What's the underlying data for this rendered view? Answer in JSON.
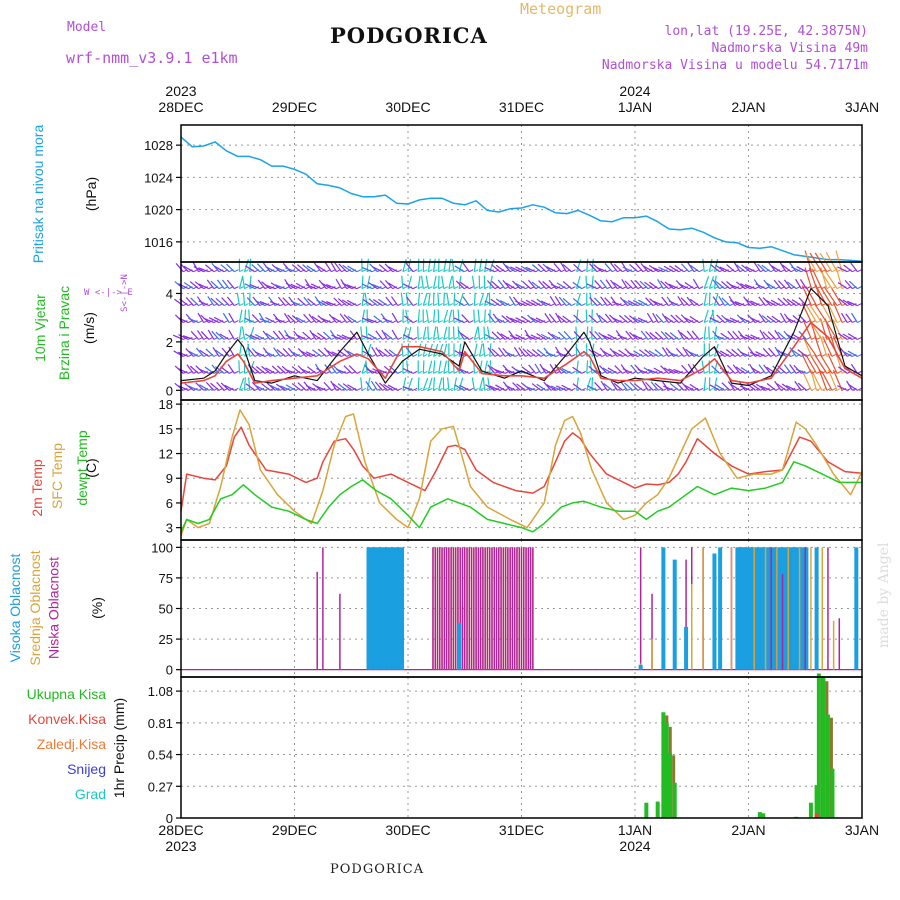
{
  "header": {
    "model_label": "Model",
    "model_name": "wrf-nmm_v3.9.1 e1km",
    "title": "PODGORICA",
    "meteogram": "Meteogram",
    "lonlat": "lon,lat (19.25E, 42.3875N)",
    "elevation": "Nadmorska Visina 49m",
    "model_elevation": "Nadmorska Visina u modelu 54.7171m",
    "footer": "PODGORICA",
    "watermark": "made by Angel"
  },
  "colors": {
    "pressure": "#1aa3e8",
    "temp2m": "#e8463c",
    "sfc": "#d9a43a",
    "dew": "#22cc22",
    "high": "#1a9fe0",
    "mid": "#d9a43a",
    "low": "#b0249a",
    "wind_label": "#22bb22",
    "purple": "#8a2be2",
    "cyan": "#19c9c0"
  },
  "time_axis": {
    "top_years": [
      "2023",
      "",
      "",
      "",
      "2024",
      "",
      ""
    ],
    "bottom_years": [
      "2023",
      "",
      "",
      "",
      "2024",
      "",
      ""
    ],
    "labels": [
      "28DEC",
      "29DEC",
      "30DEC",
      "31DEC",
      "1JAN",
      "2JAN",
      "3JAN"
    ]
  },
  "panels": {
    "pressure": {
      "label1": "Pritisak na nivou mora",
      "unit": "(hPa)",
      "yticks": [
        "1016",
        "1020",
        "1024",
        "1028"
      ]
    },
    "wind": {
      "label1": "10m Vjetar",
      "label2": "Brzina i Pravac",
      "unit": "(m/s)",
      "yticks": [
        "0",
        "2",
        "4"
      ],
      "compass": "W <-|-> E",
      "compass_ns": "S<-|->N"
    },
    "temp": {
      "label1": "2m Temp",
      "label2": "SFC Temp",
      "label3": "dewpt Temp",
      "unit": "(C)",
      "yticks": [
        "3",
        "6",
        "9",
        "12",
        "15",
        "18"
      ]
    },
    "cloud": {
      "label1": "Visoka Oblacnost",
      "label2": "Srednja Oblacnost",
      "label3": "Niska Oblacnost",
      "unit": "(%)",
      "yticks": [
        "0",
        "25",
        "50",
        "75",
        "100"
      ]
    },
    "precip": {
      "unit": "1hr Precip (mm)",
      "yticks": [
        "0",
        "0.27",
        "0.54",
        "0.81",
        "1.08"
      ],
      "legend": [
        "Ukupna Kisa",
        "Konvek.Kisa",
        "Zaledj.Kisa",
        "Snijeg",
        "Grad"
      ],
      "legend_colors": [
        "#22bb22",
        "#e8463c",
        "#f07a30",
        "#3c3cd8",
        "#19c9c0"
      ]
    }
  },
  "chart_data": [
    {
      "type": "line",
      "name": "pressure",
      "ylim": [
        1013.5,
        1030.5
      ],
      "x": [
        0,
        0.1,
        0.2,
        0.3,
        0.4,
        0.5,
        0.6,
        0.7,
        0.8,
        0.9,
        1.0,
        1.1,
        1.2,
        1.3,
        1.4,
        1.5,
        1.6,
        1.7,
        1.8,
        1.9,
        2.0,
        2.1,
        2.2,
        2.3,
        2.4,
        2.5,
        2.6,
        2.7,
        2.8,
        2.9,
        3.0,
        3.1,
        3.2,
        3.3,
        3.4,
        3.5,
        3.6,
        3.7,
        3.8,
        3.9,
        4.0,
        4.1,
        4.2,
        4.3,
        4.4,
        4.5,
        4.6,
        4.7,
        4.8,
        4.9,
        5.0,
        5.1,
        5.2,
        5.3,
        5.4,
        5.5,
        5.6,
        5.7,
        5.8,
        5.9,
        6.0
      ],
      "values": [
        1029.0,
        1027.8,
        1027.9,
        1028.4,
        1027.3,
        1026.6,
        1026.6,
        1026.2,
        1025.4,
        1025.4,
        1025.0,
        1024.4,
        1023.2,
        1023.0,
        1022.7,
        1022.0,
        1021.6,
        1021.6,
        1021.8,
        1020.8,
        1020.7,
        1021.2,
        1021.4,
        1021.4,
        1020.8,
        1020.6,
        1021.1,
        1019.9,
        1019.7,
        1020.1,
        1020.2,
        1020.6,
        1020.3,
        1019.6,
        1019.5,
        1019.9,
        1019.3,
        1018.6,
        1018.5,
        1019.0,
        1019.0,
        1019.2,
        1018.5,
        1017.6,
        1017.5,
        1017.7,
        1017.2,
        1016.5,
        1016.0,
        1015.9,
        1015.3,
        1015.2,
        1015.4,
        1014.9,
        1014.4,
        1014.2,
        1014.0,
        1013.8,
        1013.8,
        1013.7,
        1013.6
      ]
    },
    {
      "type": "line",
      "name": "temperature",
      "ylim": [
        1.5,
        18.5
      ],
      "series": [
        {
          "key": "temp2m",
          "x": [
            0,
            0.05,
            0.2,
            0.3,
            0.4,
            0.47,
            0.53,
            0.6,
            0.75,
            0.95,
            1.1,
            1.2,
            1.25,
            1.35,
            1.45,
            1.52,
            1.6,
            1.7,
            1.85,
            2.0,
            2.15,
            2.25,
            2.35,
            2.42,
            2.5,
            2.6,
            2.75,
            2.95,
            3.1,
            3.2,
            3.3,
            3.38,
            3.45,
            3.52,
            3.6,
            3.75,
            3.9,
            4.0,
            4.1,
            4.2,
            4.3,
            4.38,
            4.45,
            4.55,
            4.7,
            4.85,
            5.0,
            5.15,
            5.3,
            5.45,
            5.55,
            5.7,
            5.85,
            6.0
          ],
          "values": [
            5.0,
            9.5,
            9.0,
            8.8,
            10.5,
            14.0,
            15.2,
            13.0,
            10.0,
            9.5,
            8.5,
            9.0,
            11.0,
            13.5,
            13.8,
            12.5,
            10.5,
            9.0,
            9.5,
            8.5,
            7.5,
            10.0,
            12.8,
            13.0,
            12.5,
            10.0,
            8.5,
            7.5,
            7.2,
            8.0,
            11.0,
            13.5,
            14.5,
            13.8,
            12.0,
            9.5,
            8.5,
            7.8,
            8.3,
            8.2,
            8.5,
            9.5,
            11.0,
            13.8,
            12.0,
            10.5,
            9.5,
            9.8,
            10.0,
            14.0,
            13.5,
            11.0,
            9.8,
            9.6
          ]
        },
        {
          "key": "sfc",
          "x": [
            0,
            0.05,
            0.15,
            0.25,
            0.35,
            0.45,
            0.52,
            0.6,
            0.7,
            0.85,
            1.0,
            1.15,
            1.25,
            1.35,
            1.45,
            1.52,
            1.62,
            1.75,
            1.9,
            2.0,
            2.1,
            2.2,
            2.3,
            2.4,
            2.47,
            2.55,
            2.7,
            2.9,
            3.05,
            3.2,
            3.3,
            3.38,
            3.45,
            3.52,
            3.62,
            3.75,
            3.9,
            4.0,
            4.1,
            4.2,
            4.3,
            4.4,
            4.5,
            4.62,
            4.75,
            4.9,
            5.05,
            5.2,
            5.3,
            5.42,
            5.5,
            5.6,
            5.75,
            5.9,
            6.0
          ],
          "values": [
            2.0,
            4.0,
            3.0,
            3.5,
            8.0,
            14.0,
            17.3,
            15.5,
            10.0,
            7.0,
            5.0,
            3.5,
            7.5,
            13.0,
            16.5,
            16.8,
            11.0,
            6.0,
            4.0,
            3.0,
            6.5,
            13.5,
            15.0,
            15.3,
            12.0,
            8.0,
            5.5,
            4.0,
            3.0,
            6.0,
            13.0,
            16.0,
            16.5,
            14.5,
            10.0,
            6.0,
            4.0,
            4.5,
            6.0,
            7.0,
            9.0,
            12.0,
            15.0,
            16.3,
            12.0,
            9.0,
            9.5,
            9.5,
            10.0,
            15.8,
            15.0,
            13.0,
            9.5,
            7.0,
            9.8
          ]
        },
        {
          "key": "dew",
          "x": [
            0,
            0.05,
            0.15,
            0.25,
            0.35,
            0.45,
            0.55,
            0.65,
            0.8,
            0.95,
            1.1,
            1.2,
            1.3,
            1.4,
            1.5,
            1.6,
            1.72,
            1.85,
            2.0,
            2.1,
            2.2,
            2.35,
            2.45,
            2.55,
            2.7,
            2.85,
            3.0,
            3.1,
            3.2,
            3.35,
            3.45,
            3.55,
            3.7,
            3.85,
            4.0,
            4.1,
            4.2,
            4.3,
            4.4,
            4.55,
            4.7,
            4.85,
            5.0,
            5.15,
            5.3,
            5.4,
            5.5,
            5.65,
            5.8,
            6.0
          ],
          "values": [
            2.5,
            4.0,
            3.5,
            4.0,
            6.5,
            7.0,
            8.2,
            7.0,
            5.5,
            5.0,
            4.0,
            3.5,
            5.5,
            7.0,
            8.0,
            8.8,
            7.5,
            6.5,
            4.5,
            3.0,
            5.5,
            6.5,
            6.0,
            5.5,
            4.0,
            3.5,
            3.0,
            2.5,
            3.5,
            5.5,
            6.0,
            6.2,
            5.5,
            5.0,
            5.0,
            4.0,
            5.0,
            5.5,
            6.5,
            8.0,
            7.0,
            7.8,
            7.5,
            7.8,
            8.5,
            11.0,
            10.5,
            9.5,
            8.5,
            8.5
          ]
        }
      ]
    },
    {
      "type": "line",
      "name": "wind_speed",
      "ylim": [
        -0.4,
        5.3
      ],
      "series": [
        {
          "key": "speed_black",
          "x": [
            0,
            0.2,
            0.3,
            0.4,
            0.5,
            0.55,
            0.65,
            0.8,
            1.0,
            1.2,
            1.4,
            1.55,
            1.65,
            1.8,
            1.95,
            2.1,
            2.3,
            2.45,
            2.5,
            2.65,
            2.85,
            3.0,
            3.2,
            3.4,
            3.55,
            3.6,
            3.7,
            3.85,
            4.0,
            4.2,
            4.4,
            4.6,
            4.7,
            4.85,
            5.0,
            5.2,
            5.4,
            5.55,
            5.7,
            5.85,
            6.0
          ],
          "values": [
            0.4,
            0.5,
            0.8,
            1.5,
            2.1,
            1.8,
            0.4,
            0.3,
            0.6,
            0.4,
            1.6,
            2.4,
            1.5,
            0.3,
            1.2,
            1.7,
            1.5,
            1.0,
            2.0,
            0.8,
            0.5,
            0.8,
            0.4,
            1.5,
            2.4,
            2.0,
            0.6,
            0.3,
            0.5,
            0.4,
            0.3,
            1.4,
            1.8,
            0.3,
            0.2,
            0.6,
            2.4,
            4.2,
            3.5,
            1.0,
            0.6
          ]
        },
        {
          "key": "speed_red",
          "x": [
            0,
            0.2,
            0.3,
            0.4,
            0.5,
            0.55,
            0.65,
            0.8,
            1.0,
            1.2,
            1.4,
            1.55,
            1.65,
            1.8,
            1.95,
            2.1,
            2.3,
            2.45,
            2.5,
            2.65,
            2.85,
            3.0,
            3.2,
            3.4,
            3.55,
            3.6,
            3.7,
            3.85,
            4.0,
            4.2,
            4.4,
            4.6,
            4.7,
            4.85,
            5.0,
            5.2,
            5.4,
            5.55,
            5.7,
            5.85,
            6.0
          ],
          "values": [
            0.3,
            0.4,
            0.6,
            1.2,
            1.5,
            1.2,
            0.3,
            0.4,
            0.5,
            0.6,
            1.2,
            1.5,
            1.3,
            0.5,
            1.8,
            1.8,
            1.6,
            0.8,
            1.6,
            0.7,
            0.6,
            0.6,
            0.5,
            1.1,
            1.6,
            1.4,
            0.5,
            0.4,
            0.4,
            0.5,
            0.4,
            0.9,
            1.3,
            0.4,
            0.3,
            0.5,
            1.8,
            2.8,
            2.2,
            0.9,
            0.5
          ]
        }
      ],
      "barb_bands": [
        [
          0.5,
          0.62
        ],
        [
          1.55,
          1.67
        ],
        [
          1.95,
          2.0
        ],
        [
          2.05,
          2.45
        ],
        [
          2.55,
          2.75
        ],
        [
          3.45,
          3.5
        ],
        [
          3.55,
          3.62
        ],
        [
          4.6,
          4.72
        ],
        [
          5.55,
          5.85
        ]
      ]
    },
    {
      "type": "bar",
      "name": "clouds",
      "ylim": [
        -6,
        106
      ],
      "series": [
        {
          "key": "low",
          "bars": [
            [
              1.2,
              80
            ],
            [
              1.25,
              100
            ],
            [
              1.4,
              62
            ],
            [
              2.48,
              52
            ],
            [
              4.05,
              100
            ],
            [
              4.15,
              62
            ],
            [
              4.25,
              90
            ],
            [
              4.35,
              78
            ],
            [
              4.45,
              90
            ],
            [
              4.5,
              100
            ],
            [
              4.6,
              100
            ],
            [
              4.7,
              40
            ],
            [
              4.85,
              100
            ],
            [
              4.95,
              85
            ],
            [
              5.2,
              100
            ],
            [
              5.25,
              90
            ],
            [
              5.3,
              78
            ],
            [
              5.4,
              95
            ],
            [
              5.5,
              100
            ],
            [
              5.7,
              100
            ],
            [
              5.8,
              42
            ],
            [
              5.95,
              30
            ]
          ]
        },
        {
          "key": "mid",
          "bars": [
            [
              4.05,
              5
            ],
            [
              4.15,
              25
            ],
            [
              4.25,
              60
            ],
            [
              4.35,
              45
            ],
            [
              4.5,
              70
            ],
            [
              4.6,
              100
            ],
            [
              4.85,
              100
            ],
            [
              5.05,
              100
            ],
            [
              5.15,
              100
            ],
            [
              5.25,
              100
            ],
            [
              5.35,
              100
            ],
            [
              5.45,
              100
            ],
            [
              5.55,
              100
            ],
            [
              5.65,
              100
            ],
            [
              5.75,
              40
            ]
          ]
        },
        {
          "key": "high",
          "bars": [
            [
              2.45,
              38
            ],
            [
              4.05,
              4
            ],
            [
              4.25,
              100
            ],
            [
              4.35,
              90
            ],
            [
              4.45,
              35
            ],
            [
              4.7,
              95
            ],
            [
              4.75,
              100
            ],
            [
              4.95,
              100
            ],
            [
              5.4,
              100
            ],
            [
              5.6,
              100
            ],
            [
              5.95,
              100
            ]
          ]
        }
      ],
      "blocks": [
        {
          "key": "high",
          "x0": 1.65,
          "x1": 1.95,
          "value": 100
        },
        {
          "key": "mid",
          "x0": 2.22,
          "x1": 3.12,
          "value": 100
        },
        {
          "key": "low",
          "x0": 2.22,
          "x1": 3.12,
          "value": 100
        },
        {
          "key": "high",
          "x0": 4.9,
          "x1": 5.52,
          "value": 100
        }
      ]
    },
    {
      "type": "bar",
      "name": "precip",
      "ylim": [
        0,
        1.2
      ],
      "series": [
        {
          "key": "total",
          "bars": [
            [
              4.1,
              0.13
            ],
            [
              4.2,
              0.14
            ],
            [
              4.25,
              0.9
            ],
            [
              4.28,
              0.8
            ],
            [
              4.31,
              0.55
            ],
            [
              4.35,
              0.3
            ],
            [
              5.1,
              0.05
            ],
            [
              5.13,
              0.04
            ],
            [
              5.42,
              0.01
            ],
            [
              5.55,
              0.13
            ],
            [
              5.6,
              0.28
            ],
            [
              5.62,
              1.23
            ],
            [
              5.66,
              1.2
            ],
            [
              5.7,
              0.88
            ],
            [
              5.74,
              0.42
            ]
          ]
        },
        {
          "key": "conv",
          "bars": [
            [
              5.6,
              0.04
            ]
          ]
        }
      ]
    }
  ]
}
